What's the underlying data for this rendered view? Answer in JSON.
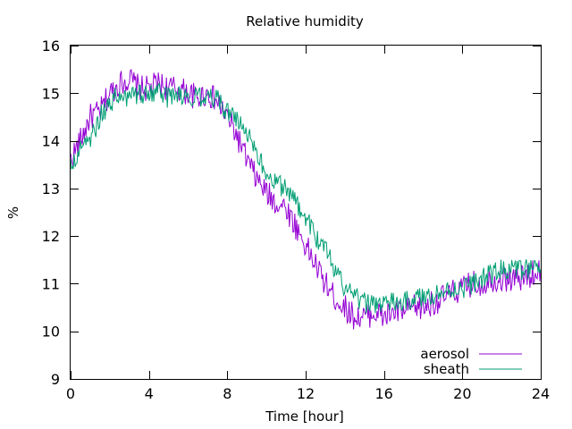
{
  "chart_data": {
    "type": "line",
    "title": "Relative humidity",
    "xlabel": "Time [hour]",
    "ylabel": "%",
    "xlim": [
      0,
      24
    ],
    "ylim": [
      9,
      16
    ],
    "xticks": [
      0,
      4,
      8,
      12,
      16,
      20,
      24
    ],
    "yticks": [
      9,
      10,
      11,
      12,
      13,
      14,
      15,
      16
    ],
    "grid": false,
    "legend_position": "bottom-right",
    "series": [
      {
        "name": "aerosol",
        "color": "#9400d3",
        "points": [
          [
            0.0,
            13.6
          ],
          [
            0.5,
            14.0
          ],
          [
            1.0,
            14.5
          ],
          [
            1.5,
            14.6
          ],
          [
            2.0,
            15.0
          ],
          [
            2.5,
            15.2
          ],
          [
            3.0,
            15.3
          ],
          [
            3.5,
            15.1
          ],
          [
            4.0,
            15.1
          ],
          [
            4.5,
            15.2
          ],
          [
            5.0,
            15.1
          ],
          [
            5.5,
            15.1
          ],
          [
            6.0,
            15.0
          ],
          [
            6.5,
            14.9
          ],
          [
            7.0,
            15.0
          ],
          [
            7.5,
            14.8
          ],
          [
            8.0,
            14.5
          ],
          [
            8.5,
            14.1
          ],
          [
            9.0,
            13.6
          ],
          [
            9.5,
            13.2
          ],
          [
            10.0,
            12.9
          ],
          [
            10.5,
            12.7
          ],
          [
            11.0,
            12.6
          ],
          [
            11.5,
            12.2
          ],
          [
            12.0,
            11.8
          ],
          [
            12.5,
            11.4
          ],
          [
            13.0,
            11.0
          ],
          [
            13.5,
            10.7
          ],
          [
            14.0,
            10.5
          ],
          [
            14.5,
            10.3
          ],
          [
            15.0,
            10.3
          ],
          [
            15.5,
            10.4
          ],
          [
            16.0,
            10.3
          ],
          [
            16.5,
            10.4
          ],
          [
            17.0,
            10.4
          ],
          [
            17.5,
            10.5
          ],
          [
            18.0,
            10.5
          ],
          [
            18.5,
            10.6
          ],
          [
            19.0,
            10.7
          ],
          [
            19.5,
            10.8
          ],
          [
            20.0,
            10.9
          ],
          [
            20.5,
            11.0
          ],
          [
            21.0,
            11.0
          ],
          [
            21.5,
            11.1
          ],
          [
            22.0,
            11.1
          ],
          [
            22.5,
            11.1
          ],
          [
            23.0,
            11.1
          ],
          [
            23.5,
            11.2
          ],
          [
            24.0,
            11.3
          ]
        ],
        "noise": 0.28
      },
      {
        "name": "sheath",
        "color": "#009e73",
        "points": [
          [
            0.0,
            13.4
          ],
          [
            0.5,
            13.9
          ],
          [
            1.0,
            14.0
          ],
          [
            1.5,
            14.5
          ],
          [
            2.0,
            14.8
          ],
          [
            2.5,
            15.0
          ],
          [
            3.0,
            14.9
          ],
          [
            3.5,
            15.0
          ],
          [
            4.0,
            15.0
          ],
          [
            4.5,
            15.0
          ],
          [
            5.0,
            14.9
          ],
          [
            5.5,
            15.0
          ],
          [
            6.0,
            14.9
          ],
          [
            6.5,
            14.9
          ],
          [
            7.0,
            14.9
          ],
          [
            7.5,
            14.9
          ],
          [
            8.0,
            14.6
          ],
          [
            8.5,
            14.4
          ],
          [
            9.0,
            14.2
          ],
          [
            9.5,
            13.8
          ],
          [
            10.0,
            13.3
          ],
          [
            10.5,
            13.1
          ],
          [
            11.0,
            13.0
          ],
          [
            11.5,
            12.7
          ],
          [
            12.0,
            12.4
          ],
          [
            12.5,
            12.0
          ],
          [
            13.0,
            11.7
          ],
          [
            13.5,
            11.3
          ],
          [
            14.0,
            10.9
          ],
          [
            14.5,
            10.7
          ],
          [
            15.0,
            10.6
          ],
          [
            15.5,
            10.6
          ],
          [
            16.0,
            10.6
          ],
          [
            16.5,
            10.6
          ],
          [
            17.0,
            10.6
          ],
          [
            17.5,
            10.7
          ],
          [
            18.0,
            10.7
          ],
          [
            18.5,
            10.8
          ],
          [
            19.0,
            10.8
          ],
          [
            19.5,
            10.9
          ],
          [
            20.0,
            10.9
          ],
          [
            20.5,
            11.0
          ],
          [
            21.0,
            11.1
          ],
          [
            21.5,
            11.2
          ],
          [
            22.0,
            11.3
          ],
          [
            22.5,
            11.3
          ],
          [
            23.0,
            11.3
          ],
          [
            23.5,
            11.3
          ],
          [
            24.0,
            11.3
          ]
        ],
        "noise": 0.22
      }
    ]
  }
}
